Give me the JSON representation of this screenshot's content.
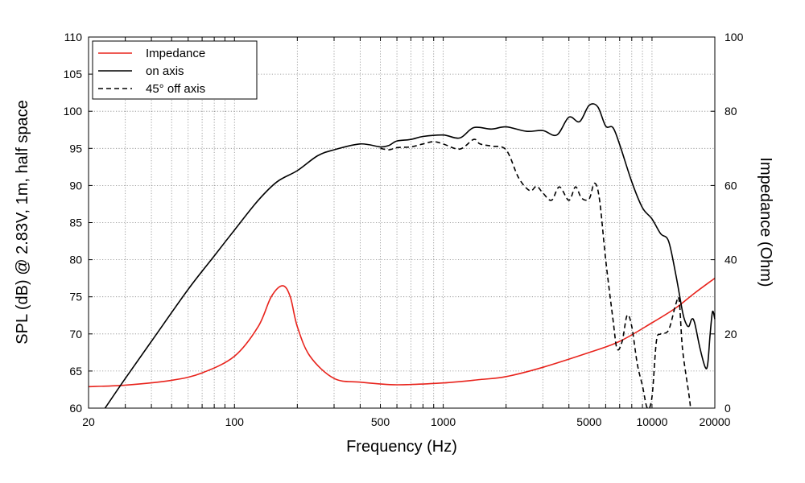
{
  "chart_data": {
    "type": "line",
    "xlabel": "Frequency (Hz)",
    "ylabel": "SPL (dB) @ 2.83V, 1m, half space",
    "y2label": "Impedance (Ohm)",
    "xscale": "log",
    "xlim": [
      20,
      20000
    ],
    "ylim": [
      60,
      110
    ],
    "y2lim": [
      0,
      100
    ],
    "grid": true,
    "legend_position": "top-left",
    "x_ticks": [
      {
        "value": 20,
        "label": "20"
      },
      {
        "value": 100,
        "label": "100"
      },
      {
        "value": 500,
        "label": "500"
      },
      {
        "value": 1000,
        "label": "1000"
      },
      {
        "value": 5000,
        "label": "5000"
      },
      {
        "value": 10000,
        "label": "10000"
      },
      {
        "value": 20000,
        "label": "20000"
      }
    ],
    "y_ticks": [
      {
        "value": 60,
        "label": "60"
      },
      {
        "value": 65,
        "label": "65"
      },
      {
        "value": 70,
        "label": "70"
      },
      {
        "value": 75,
        "label": "75"
      },
      {
        "value": 80,
        "label": "80"
      },
      {
        "value": 85,
        "label": "85"
      },
      {
        "value": 90,
        "label": "90"
      },
      {
        "value": 95,
        "label": "95"
      },
      {
        "value": 100,
        "label": "100"
      },
      {
        "value": 105,
        "label": "105"
      },
      {
        "value": 110,
        "label": "110"
      }
    ],
    "y2_ticks": [
      {
        "value": 0,
        "label": "0"
      },
      {
        "value": 20,
        "label": "20"
      },
      {
        "value": 40,
        "label": "40"
      },
      {
        "value": 60,
        "label": "60"
      },
      {
        "value": 80,
        "label": "80"
      },
      {
        "value": 100,
        "label": "100"
      }
    ],
    "series": [
      {
        "name": "Impedance",
        "axis": "right",
        "color": "#e8231c",
        "dash": "solid",
        "points": [
          [
            20,
            5.8
          ],
          [
            30,
            6.2
          ],
          [
            50,
            7.5
          ],
          [
            70,
            9.5
          ],
          [
            100,
            14
          ],
          [
            130,
            22
          ],
          [
            150,
            30
          ],
          [
            170,
            33
          ],
          [
            185,
            30
          ],
          [
            200,
            22
          ],
          [
            230,
            14
          ],
          [
            300,
            8
          ],
          [
            400,
            7
          ],
          [
            600,
            6.3
          ],
          [
            1000,
            6.8
          ],
          [
            1500,
            7.7
          ],
          [
            2000,
            8.5
          ],
          [
            3000,
            11
          ],
          [
            5000,
            15
          ],
          [
            7000,
            18
          ],
          [
            10000,
            23
          ],
          [
            13000,
            27
          ],
          [
            16000,
            31
          ],
          [
            20000,
            35
          ]
        ]
      },
      {
        "name": "on axis",
        "axis": "left",
        "color": "#000000",
        "dash": "solid",
        "points": [
          [
            24,
            60
          ],
          [
            30,
            64
          ],
          [
            40,
            69
          ],
          [
            60,
            76
          ],
          [
            80,
            80.5
          ],
          [
            100,
            84
          ],
          [
            130,
            88
          ],
          [
            160,
            90.5
          ],
          [
            200,
            92
          ],
          [
            250,
            94
          ],
          [
            300,
            94.8
          ],
          [
            400,
            95.6
          ],
          [
            500,
            95.2
          ],
          [
            550,
            95.4
          ],
          [
            600,
            96
          ],
          [
            700,
            96.2
          ],
          [
            800,
            96.6
          ],
          [
            1000,
            96.8
          ],
          [
            1200,
            96.4
          ],
          [
            1400,
            97.8
          ],
          [
            1700,
            97.6
          ],
          [
            2000,
            97.9
          ],
          [
            2500,
            97.3
          ],
          [
            3000,
            97.4
          ],
          [
            3500,
            96.8
          ],
          [
            4000,
            99.2
          ],
          [
            4500,
            98.6
          ],
          [
            5000,
            100.8
          ],
          [
            5500,
            100.6
          ],
          [
            6000,
            98
          ],
          [
            6500,
            97.8
          ],
          [
            7000,
            95.5
          ],
          [
            8000,
            90.5
          ],
          [
            9000,
            87
          ],
          [
            10000,
            85.5
          ],
          [
            11000,
            83.5
          ],
          [
            12000,
            82.5
          ],
          [
            13000,
            78
          ],
          [
            14000,
            73
          ],
          [
            14500,
            71.5
          ],
          [
            15000,
            71
          ],
          [
            15500,
            72
          ],
          [
            16000,
            71.5
          ],
          [
            17000,
            68
          ],
          [
            18000,
            65.5
          ],
          [
            18500,
            66
          ],
          [
            19000,
            70
          ],
          [
            19500,
            73
          ],
          [
            20000,
            72
          ]
        ]
      },
      {
        "name": "45° off axis",
        "axis": "left",
        "color": "#000000",
        "dash": "dashed",
        "points": [
          [
            500,
            95
          ],
          [
            550,
            94.8
          ],
          [
            600,
            95.1
          ],
          [
            700,
            95.2
          ],
          [
            800,
            95.6
          ],
          [
            900,
            95.9
          ],
          [
            1000,
            95.6
          ],
          [
            1200,
            94.9
          ],
          [
            1400,
            96.2
          ],
          [
            1500,
            95.6
          ],
          [
            1700,
            95.3
          ],
          [
            2000,
            94.8
          ],
          [
            2300,
            91
          ],
          [
            2600,
            89.3
          ],
          [
            2800,
            89.9
          ],
          [
            3000,
            89
          ],
          [
            3300,
            88
          ],
          [
            3600,
            89.8
          ],
          [
            4000,
            88
          ],
          [
            4300,
            89.8
          ],
          [
            4600,
            88.3
          ],
          [
            5000,
            88.2
          ],
          [
            5300,
            90.3
          ],
          [
            5600,
            88.2
          ],
          [
            6000,
            80
          ],
          [
            6500,
            72
          ],
          [
            6800,
            68
          ],
          [
            7200,
            69
          ],
          [
            7600,
            72.5
          ],
          [
            8000,
            71
          ],
          [
            8500,
            66
          ],
          [
            9000,
            63
          ],
          [
            9500,
            60
          ],
          [
            10000,
            61.5
          ],
          [
            10500,
            69
          ],
          [
            11000,
            70
          ],
          [
            12000,
            70.5
          ],
          [
            13000,
            74
          ],
          [
            13500,
            74.5
          ],
          [
            14000,
            68
          ],
          [
            15000,
            62
          ],
          [
            15300,
            60
          ]
        ]
      }
    ]
  }
}
